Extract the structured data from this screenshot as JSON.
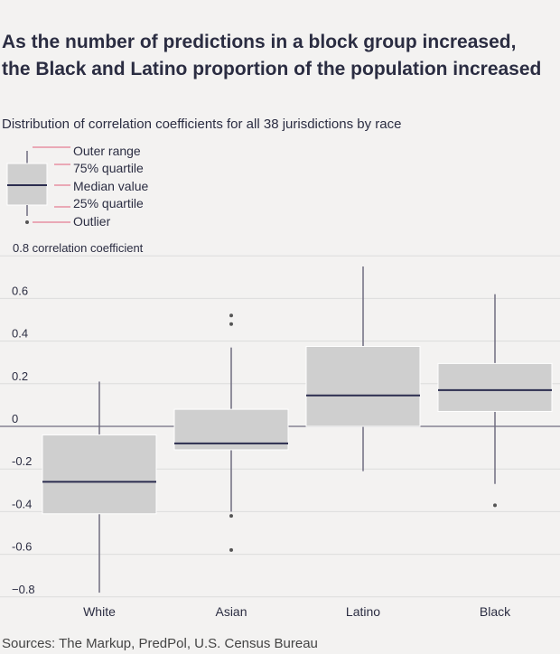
{
  "title": "As the number of predictions in a block group increased, the Black and Latino proportion of the population increased",
  "subtitle": "Distribution of correlation coefficients for all 38 jurisdictions by race",
  "source": "Sources: The Markup, PredPol, U.S. Census Bureau",
  "legend": {
    "outer_range": "Outer range",
    "q75": "75% quartile",
    "median": "Median value",
    "q25": "25% quartile",
    "outlier": "Outlier"
  },
  "colors": {
    "box_fill": "#cfcfcf",
    "median_line": "#2b2d4f",
    "whisker": "#6f6c80",
    "legend_connector": "#e0607a",
    "grid": "#dcdcdc"
  },
  "chart_data": {
    "type": "boxplot",
    "title": "As the number of predictions in a block group increased, the Black and Latino proportion of the population increased",
    "subtitle": "Distribution of correlation coefficients for all 38 jurisdictions by race",
    "ylabel": "correlation coefficient",
    "ylim": [
      -0.8,
      0.8
    ],
    "yticks": [
      0.8,
      0.6,
      0.4,
      0.2,
      0,
      -0.2,
      -0.4,
      -0.6,
      -0.8
    ],
    "ytick_labels": [
      "0.8 correlation coefficient",
      "0.6",
      "0.4",
      "0.2",
      "0",
      "-0.2",
      "-0.4",
      "-0.6",
      "−0.8"
    ],
    "grid": true,
    "categories": [
      "White",
      "Asian",
      "Latino",
      "Black"
    ],
    "boxes": [
      {
        "category": "White",
        "whisker_low": -0.78,
        "q1": -0.41,
        "median": -0.26,
        "q3": -0.04,
        "whisker_high": 0.21,
        "outliers": []
      },
      {
        "category": "Asian",
        "whisker_low": -0.4,
        "q1": -0.11,
        "median": -0.08,
        "q3": 0.08,
        "whisker_high": 0.37,
        "outliers": [
          0.52,
          0.48,
          -0.42,
          -0.58
        ]
      },
      {
        "category": "Latino",
        "whisker_low": -0.21,
        "q1": 0.0,
        "median": 0.145,
        "q3": 0.375,
        "whisker_high": 0.75,
        "outliers": []
      },
      {
        "category": "Black",
        "whisker_low": -0.27,
        "q1": 0.07,
        "median": 0.17,
        "q3": 0.295,
        "whisker_high": 0.62,
        "outliers": [
          -0.37
        ]
      }
    ]
  }
}
